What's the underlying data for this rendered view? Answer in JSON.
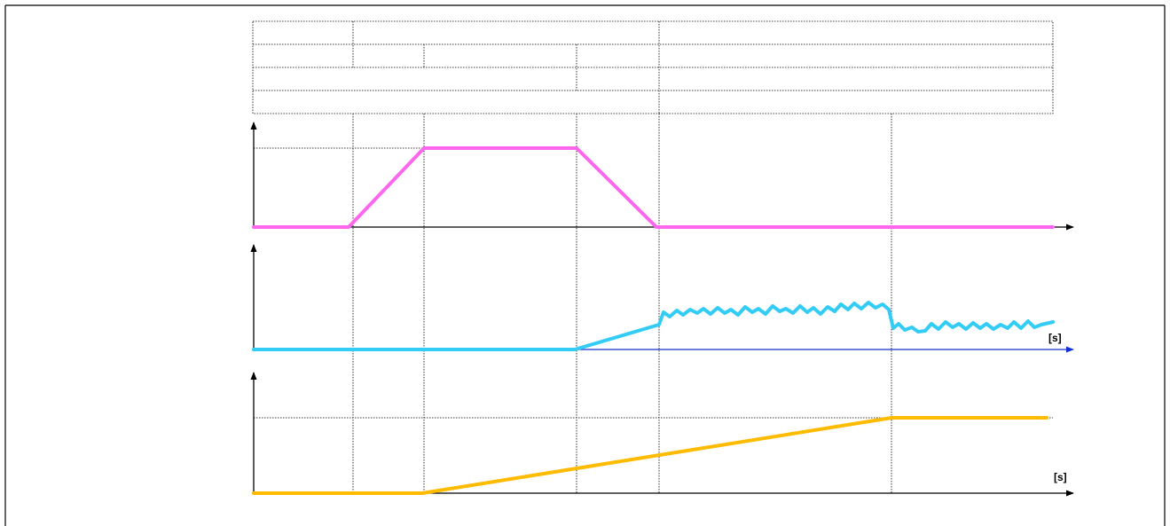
{
  "diagram": {
    "header_rows": [
      {
        "cells": [
          "",
          "",
          ""
        ]
      },
      {
        "cells": [
          "",
          "",
          "",
          "",
          ""
        ]
      },
      {
        "cells": [
          "",
          "",
          ""
        ]
      },
      {
        "cells": [
          ""
        ]
      }
    ],
    "panels": [
      {
        "id": "signal-1",
        "x_unit_label": "",
        "color": "#ff66ee"
      },
      {
        "id": "signal-2",
        "x_unit_label": "[s]",
        "color": "#33ccf5"
      },
      {
        "id": "signal-3",
        "x_unit_label": "[s]",
        "color": "#ffbb00"
      }
    ]
  }
}
